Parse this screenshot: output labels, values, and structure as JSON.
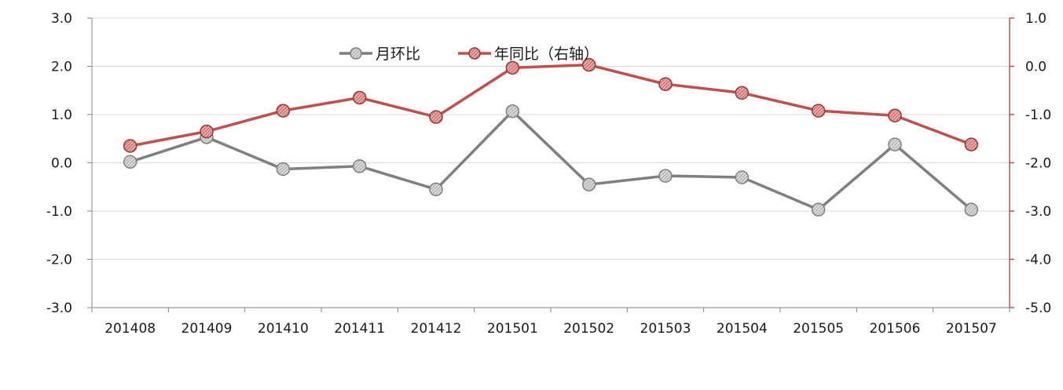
{
  "chart_data": {
    "type": "line",
    "categories": [
      "201408",
      "201409",
      "201410",
      "201411",
      "201412",
      "201501",
      "201502",
      "201503",
      "201504",
      "201505",
      "201506",
      "201507"
    ],
    "series": [
      {
        "name": "月环比",
        "axis": "left",
        "color": "#7f7f7f",
        "values": [
          0.02,
          0.53,
          -0.13,
          -0.07,
          -0.55,
          1.07,
          -0.45,
          -0.27,
          -0.3,
          -0.97,
          0.38,
          -0.97
        ]
      },
      {
        "name": "年同比（右轴）",
        "axis": "right",
        "color": "#c0504d",
        "values": [
          -1.65,
          -1.35,
          -0.92,
          -0.65,
          -1.05,
          -0.03,
          0.03,
          -0.37,
          -0.55,
          -0.92,
          -1.02,
          -1.62
        ]
      }
    ],
    "y_left": {
      "ylim": [
        -3.0,
        3.0
      ],
      "ticks": [
        "3.0",
        "2.0",
        "1.0",
        "0.0",
        "-1.0",
        "-2.0",
        "-3.0"
      ]
    },
    "y_right": {
      "ylim": [
        -5.0,
        1.0
      ],
      "ticks": [
        "1.0",
        "0.0",
        "-1.0",
        "-2.0",
        "-3.0",
        "-4.0",
        "-5.0"
      ],
      "color": "#c0504d"
    },
    "grid": true,
    "legend": {
      "position": "top-center"
    },
    "title": "",
    "xlabel": "",
    "ylabel": ""
  }
}
